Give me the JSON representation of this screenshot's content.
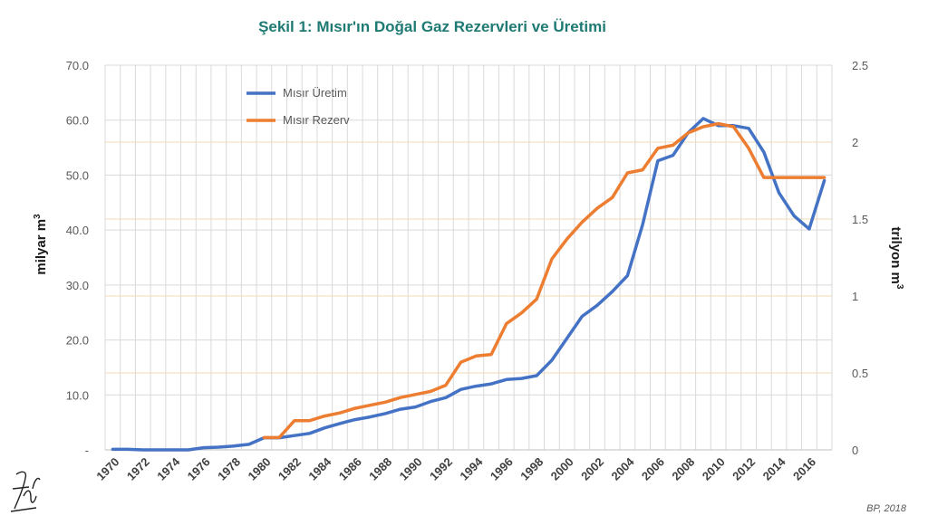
{
  "chart_data": {
    "type": "line",
    "title": "Şekil 1: Mısır'ın Doğal Gaz Rezervleri ve  Üretimi",
    "ylabel": "milyar m",
    "ylabel_sup": "3",
    "y2label": "trilyon m",
    "y2label_sup": "3",
    "ylim": [
      0,
      70
    ],
    "y2lim": [
      0,
      2.5
    ],
    "yticks": [
      0,
      10,
      20,
      30,
      40,
      50,
      60,
      70
    ],
    "ytick_labels": [
      "-",
      "10.0",
      "20.0",
      "30.0",
      "40.0",
      "50.0",
      "60.0",
      "70.0"
    ],
    "y2ticks": [
      0,
      0.5,
      1,
      1.5,
      2,
      2.5
    ],
    "y2tick_labels": [
      "0",
      "0.5",
      "1",
      "1.5",
      "2",
      "2.5"
    ],
    "x": [
      1970,
      1971,
      1972,
      1973,
      1974,
      1975,
      1976,
      1977,
      1978,
      1979,
      1980,
      1981,
      1982,
      1983,
      1984,
      1985,
      1986,
      1987,
      1988,
      1989,
      1990,
      1991,
      1992,
      1993,
      1994,
      1995,
      1996,
      1997,
      1998,
      1999,
      2000,
      2001,
      2002,
      2003,
      2004,
      2005,
      2006,
      2007,
      2008,
      2009,
      2010,
      2011,
      2012,
      2013,
      2014,
      2015,
      2016,
      2017
    ],
    "xtick_labels": [
      "1970",
      "1972",
      "1974",
      "1976",
      "1978",
      "1980",
      "1982",
      "1984",
      "1986",
      "1988",
      "1990",
      "1992",
      "1994",
      "1996",
      "1998",
      "2000",
      "2002",
      "2004",
      "2006",
      "2008",
      "2010",
      "2012",
      "2014",
      "2016"
    ],
    "series": [
      {
        "name": "Mısır Üretim",
        "axis": "left",
        "color": "#4472c4",
        "values": [
          0.1,
          0.1,
          0.0,
          0.0,
          0.0,
          0.0,
          0.4,
          0.5,
          0.7,
          1.0,
          2.2,
          2.2,
          2.6,
          3.0,
          4.0,
          4.8,
          5.5,
          6.0,
          6.6,
          7.4,
          7.8,
          8.8,
          9.5,
          11.0,
          11.6,
          12.0,
          12.8,
          13.0,
          13.5,
          16.3,
          20.3,
          24.3,
          26.3,
          28.8,
          31.7,
          41.0,
          52.6,
          53.6,
          57.7,
          60.3,
          59.0,
          59.0,
          58.5,
          54.2,
          46.8,
          42.6,
          40.2,
          49.0
        ]
      },
      {
        "name": "Mısır Rezerv",
        "axis": "right",
        "color": "#ed7d31",
        "values": [
          null,
          null,
          null,
          null,
          null,
          null,
          null,
          null,
          null,
          null,
          0.08,
          0.08,
          0.19,
          0.19,
          0.22,
          0.24,
          0.27,
          0.29,
          0.31,
          0.34,
          0.36,
          0.38,
          0.42,
          0.57,
          0.61,
          0.62,
          0.82,
          0.89,
          0.98,
          1.24,
          1.37,
          1.48,
          1.57,
          1.64,
          1.8,
          1.82,
          1.96,
          1.98,
          2.06,
          2.1,
          2.12,
          2.1,
          1.96,
          1.77,
          1.77,
          1.77,
          1.77,
          1.77
        ]
      }
    ],
    "source": "BP, 2018"
  },
  "colors": {
    "title": "#1f7a74",
    "vgrid": "#d9d9d9",
    "hgrid": "#f2d9b6"
  },
  "signature_icon": "signature-icon"
}
